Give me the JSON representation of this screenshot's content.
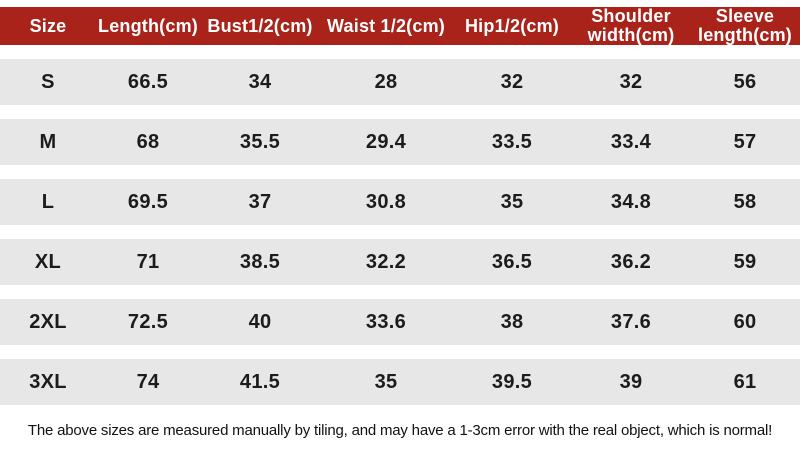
{
  "chart_data": {
    "type": "table",
    "columns": [
      "Size",
      "Length(cm)",
      "Bust1/2(cm)",
      "Waist 1/2(cm)",
      "Hip1/2(cm)",
      "Shoulder width(cm)",
      "Sleeve length(cm)"
    ],
    "rows": [
      [
        "S",
        "66.5",
        "34",
        "28",
        "32",
        "32",
        "56"
      ],
      [
        "M",
        "68",
        "35.5",
        "29.4",
        "33.5",
        "33.4",
        "57"
      ],
      [
        "L",
        "69.5",
        "37",
        "30.8",
        "35",
        "34.8",
        "58"
      ],
      [
        "XL",
        "71",
        "38.5",
        "32.2",
        "36.5",
        "36.2",
        "59"
      ],
      [
        "2XL",
        "72.5",
        "40",
        "33.6",
        "38",
        "37.6",
        "60"
      ],
      [
        "3XL",
        "74",
        "41.5",
        "35",
        "39.5",
        "39",
        "61"
      ]
    ]
  },
  "footer_note": "The above sizes are measured manually by tiling, and may have a 1-3cm error with the real object, which is normal!",
  "colors": {
    "header_bg": "#a9231b",
    "header_text": "#ffffff",
    "row_bg": "#e7e7e7",
    "cell_text": "#1c1c1c"
  }
}
